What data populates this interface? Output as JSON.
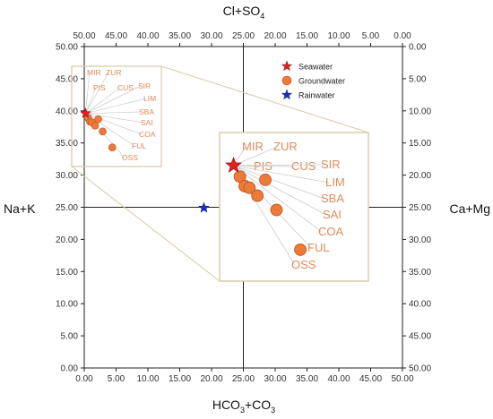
{
  "chart_data": {
    "type": "scatter",
    "title": "",
    "axis_titles": {
      "top": "Cl+SO",
      "top_sub": "4",
      "bottom_a": "HCO",
      "bottom_a_sub": "3",
      "bottom_b": "+CO",
      "bottom_b_sub": "3",
      "left": "Na+K",
      "right": "Ca+Mg"
    },
    "x_range": [
      0,
      50
    ],
    "y_range": [
      0,
      50
    ],
    "top_range": [
      50,
      0
    ],
    "right_range": [
      0,
      50
    ],
    "tick_step": 5,
    "tick_labels_bottom": [
      "0.00",
      "5.00",
      "10.00",
      "15.00",
      "20.00",
      "25.00",
      "30.00",
      "35.00",
      "40.00",
      "45.00",
      "50.00"
    ],
    "tick_labels_top": [
      "50.00",
      "45.00",
      "40.00",
      "35.00",
      "30.00",
      "25.00",
      "20.00",
      "15.00",
      "10.00",
      "5.00",
      "0.00"
    ],
    "tick_labels_left": [
      "0.00",
      "5.00",
      "10.00",
      "15.00",
      "20.00",
      "25.00",
      "30.00",
      "35.00",
      "40.00",
      "45.00",
      "50.00"
    ],
    "tick_labels_right": [
      "50.00",
      "45.00",
      "40.00",
      "35.00",
      "30.00",
      "25.00",
      "20.00",
      "15.00",
      "10.00",
      "5.00",
      "0.00"
    ],
    "center_lines": {
      "x": 25,
      "y": 25
    },
    "legend_position": "top-right",
    "legend": [
      {
        "name": "Seawater",
        "marker": "star",
        "color": "#e02020"
      },
      {
        "name": "Groundwater",
        "marker": "circle",
        "color": "#ee7a3a"
      },
      {
        "name": "Rainwater",
        "marker": "star",
        "color": "#1a2ec8"
      }
    ],
    "seawater": [
      {
        "x": 0.2,
        "y": 39.6
      }
    ],
    "rainwater": [
      {
        "x": 18.8,
        "y": 24.9
      }
    ],
    "groundwater": [
      {
        "x": 0.6,
        "y": 38.9
      },
      {
        "x": 0.9,
        "y": 38.3
      },
      {
        "x": 1.2,
        "y": 38.2
      },
      {
        "x": 1.7,
        "y": 37.7
      },
      {
        "x": 2.2,
        "y": 38.7
      },
      {
        "x": 2.9,
        "y": 36.8
      },
      {
        "x": 4.4,
        "y": 34.3
      }
    ],
    "sites": [
      "MIR",
      "ZUR",
      "PIS",
      "CUS",
      "SIR",
      "LIM",
      "SBA",
      "SAI",
      "COA",
      "FUL",
      "OSS"
    ],
    "inset_view": {
      "x": [
        0,
        8
      ],
      "y": [
        33,
        41
      ]
    },
    "colors": {
      "seawater": "#e02020",
      "groundwater": "#ee7a3a",
      "groundwater_edge": "#b8531f",
      "rainwater": "#1a2ec8",
      "inset_border": "#d9c9a6",
      "site_label": "#e08b5b",
      "leader": "#cccccc"
    }
  }
}
